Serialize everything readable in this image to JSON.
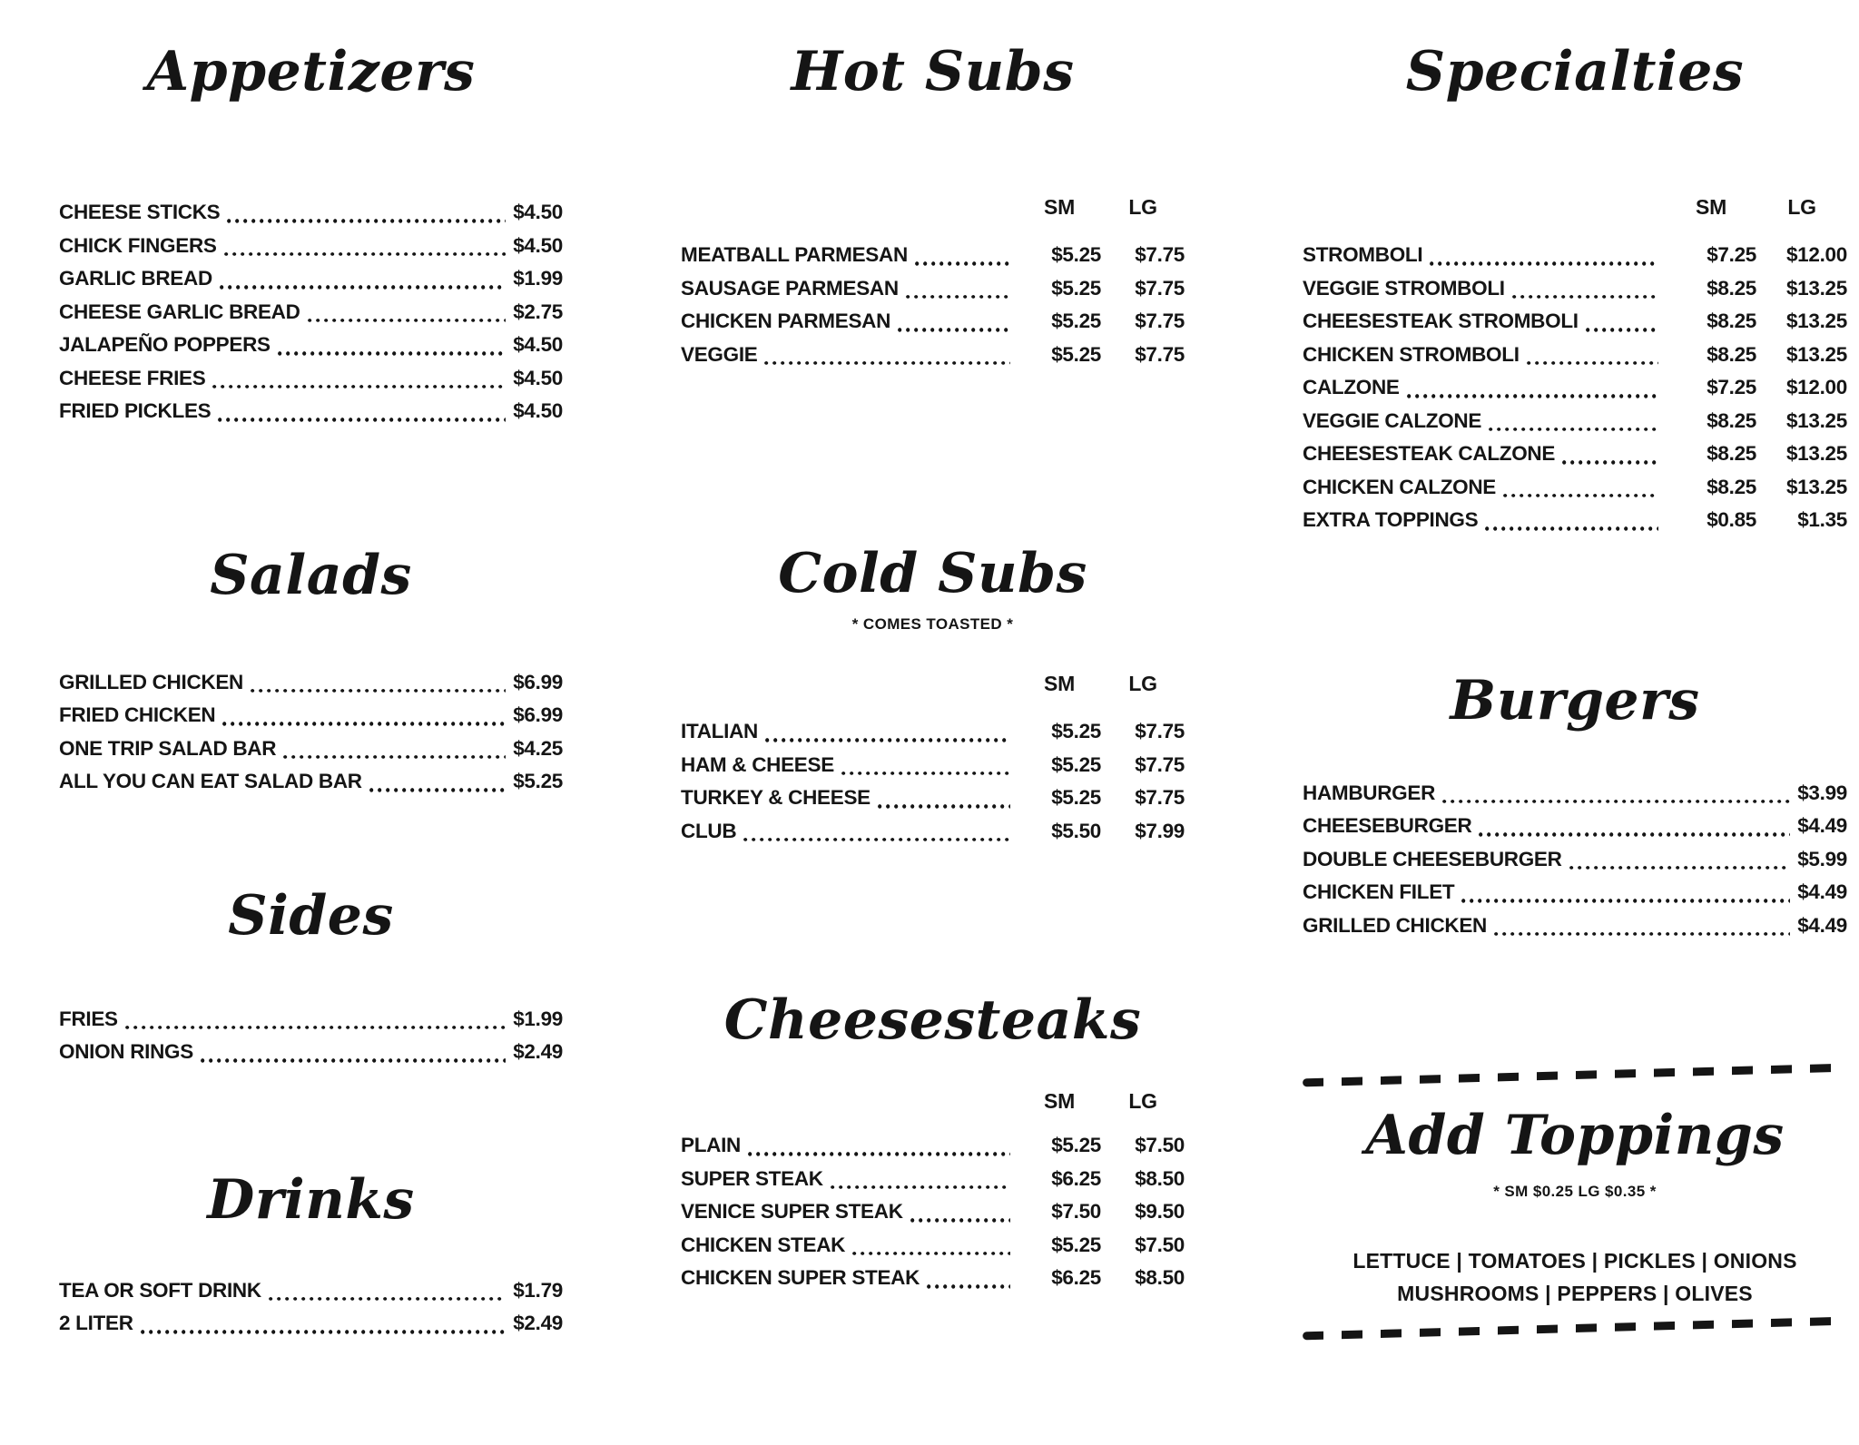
{
  "colors": {
    "background": "#ffffff",
    "ink": "#151515"
  },
  "columns": [
    {
      "sections": [
        {
          "heading": "Appetizers",
          "items": [
            {
              "name": "CHEESE STICKS",
              "price": "$4.50"
            },
            {
              "name": "CHICK FINGERS",
              "price": "$4.50"
            },
            {
              "name": "GARLIC BREAD",
              "price": "$1.99"
            },
            {
              "name": "CHEESE GARLIC BREAD",
              "price": "$2.75"
            },
            {
              "name": "JALAPEÑO POPPERS",
              "price": "$4.50"
            },
            {
              "name": "CHEESE FRIES",
              "price": "$4.50"
            },
            {
              "name": "FRIED PICKLES",
              "price": "$4.50"
            }
          ]
        },
        {
          "heading": "Salads",
          "items": [
            {
              "name": "GRILLED CHICKEN",
              "price": "$6.99"
            },
            {
              "name": "FRIED CHICKEN",
              "price": "$6.99"
            },
            {
              "name": "ONE TRIP SALAD BAR",
              "price": "$4.25"
            },
            {
              "name": "ALL YOU CAN EAT SALAD BAR",
              "price": "$5.25"
            }
          ]
        },
        {
          "heading": "Sides",
          "items": [
            {
              "name": "FRIES",
              "price": "$1.99"
            },
            {
              "name": "ONION RINGS",
              "price": "$2.49"
            }
          ]
        },
        {
          "heading": "Drinks",
          "items": [
            {
              "name": "TEA OR SOFT DRINK",
              "price": "$1.79"
            },
            {
              "name": "2 LITER",
              "price": "$2.49"
            }
          ]
        }
      ]
    },
    {
      "sections": [
        {
          "heading": "Hot Subs",
          "price_headers": [
            "SM",
            "LG"
          ],
          "items": [
            {
              "name": "MEATBALL PARMESAN",
              "sm": "$5.25",
              "lg": "$7.75"
            },
            {
              "name": "SAUSAGE PARMESAN",
              "sm": "$5.25",
              "lg": "$7.75"
            },
            {
              "name": "CHICKEN PARMESAN",
              "sm": "$5.25",
              "lg": "$7.75"
            },
            {
              "name": "VEGGIE",
              "sm": "$5.25",
              "lg": "$7.75"
            }
          ]
        },
        {
          "heading": "Cold Subs",
          "subtitle": "* COMES TOASTED *",
          "price_headers": [
            "SM",
            "LG"
          ],
          "items": [
            {
              "name": "ITALIAN",
              "sm": "$5.25",
              "lg": "$7.75"
            },
            {
              "name": "HAM & CHEESE",
              "sm": "$5.25",
              "lg": "$7.75"
            },
            {
              "name": "TURKEY & CHEESE",
              "sm": "$5.25",
              "lg": "$7.75"
            },
            {
              "name": "CLUB",
              "sm": "$5.50",
              "lg": "$7.99"
            }
          ]
        },
        {
          "heading": "Cheesesteaks",
          "price_headers": [
            "SM",
            "LG"
          ],
          "items": [
            {
              "name": "PLAIN",
              "sm": "$5.25",
              "lg": "$7.50"
            },
            {
              "name": "SUPER STEAK",
              "sm": "$6.25",
              "lg": "$8.50"
            },
            {
              "name": "VENICE SUPER STEAK",
              "sm": "$7.50",
              "lg": "$9.50"
            },
            {
              "name": "CHICKEN STEAK",
              "sm": "$5.25",
              "lg": "$7.50"
            },
            {
              "name": "CHICKEN SUPER STEAK",
              "sm": "$6.25",
              "lg": "$8.50"
            }
          ]
        }
      ]
    },
    {
      "sections": [
        {
          "heading": "Specialties",
          "price_headers": [
            "SM",
            "LG"
          ],
          "items": [
            {
              "name": "STROMBOLI",
              "sm": "$7.25",
              "lg": "$12.00"
            },
            {
              "name": "VEGGIE STROMBOLI",
              "sm": "$8.25",
              "lg": "$13.25"
            },
            {
              "name": "CHEESESTEAK STROMBOLI",
              "sm": "$8.25",
              "lg": "$13.25"
            },
            {
              "name": "CHICKEN STROMBOLI",
              "sm": "$8.25",
              "lg": "$13.25"
            },
            {
              "name": "CALZONE",
              "sm": "$7.25",
              "lg": "$12.00"
            },
            {
              "name": "VEGGIE CALZONE",
              "sm": "$8.25",
              "lg": "$13.25"
            },
            {
              "name": "CHEESESTEAK CALZONE",
              "sm": "$8.25",
              "lg": "$13.25"
            },
            {
              "name": "CHICKEN CALZONE",
              "sm": "$8.25",
              "lg": "$13.25"
            },
            {
              "name": "EXTRA TOPPINGS",
              "sm": "$0.85",
              "lg": "$1.35"
            }
          ]
        },
        {
          "heading": "Burgers",
          "items": [
            {
              "name": "HAMBURGER",
              "price": "$3.99"
            },
            {
              "name": "CHEESEBURGER",
              "price": "$4.49"
            },
            {
              "name": "DOUBLE CHEESEBURGER",
              "price": "$5.99"
            },
            {
              "name": "CHICKEN FILET",
              "price": "$4.49"
            },
            {
              "name": "GRILLED CHICKEN",
              "price": "$4.49"
            }
          ]
        },
        {
          "heading": "Add Toppings",
          "subtitle": "* SM $0.25 LG $0.35 *",
          "topping_lines": [
            "LETTUCE | TOMATOES | PICKLES | ONIONS",
            "MUSHROOMS | PEPPERS | OLIVES"
          ]
        }
      ]
    }
  ]
}
